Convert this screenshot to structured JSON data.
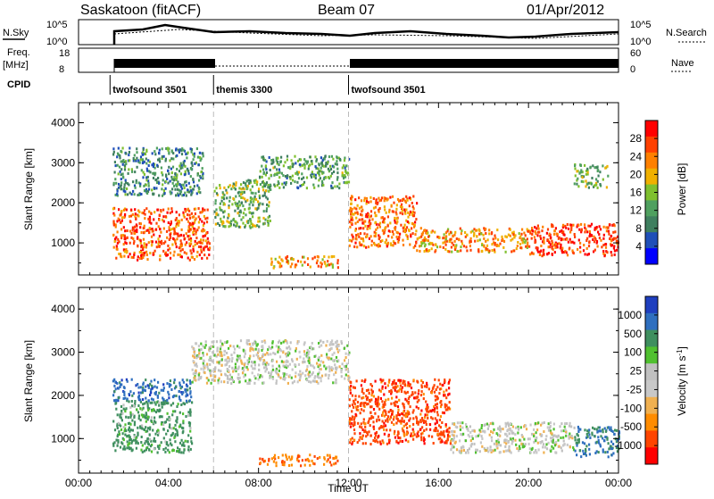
{
  "header": {
    "station": "Saskatoon (fitACF)",
    "beam": "Beam 07",
    "date": "01/Apr/2012"
  },
  "strip_labels": {
    "nsky": "N.Sky",
    "nsearch": "N.Search",
    "freq_top": "Freq.",
    "freq_unit": "[MHz]",
    "nave": "Nave",
    "cpid": "CPID"
  },
  "strip_ticks": {
    "nsky_left": [
      "10^5",
      "10^0"
    ],
    "nsky_right": [
      "10^5",
      "10^0"
    ],
    "freq_left": [
      "18",
      "8"
    ],
    "nave_right": [
      "60",
      "0"
    ]
  },
  "cpid_segments": [
    {
      "label": "twofsound 3501",
      "start_hour": 1.4
    },
    {
      "label": "themis 3300",
      "start_hour": 6.0
    },
    {
      "label": "twofsound 3501",
      "start_hour": 12.0
    }
  ],
  "colors": {
    "power": [
      "#0000ff",
      "#1f4fb8",
      "#3f7f5f",
      "#4fa05f",
      "#7fc02f",
      "#f0b000",
      "#ff8000",
      "#ff4000",
      "#ff0000"
    ],
    "velocity": [
      "#ff0000",
      "#ff4500",
      "#ff8c00",
      "#f0b050",
      "#c8c8c8",
      "#c0c0c0",
      "#50c030",
      "#3f8f5f",
      "#2f6fbf",
      "#1f3fbf"
    ]
  },
  "chart_data": [
    {
      "type": "heatmap",
      "title": "",
      "ylabel": "Slant Range [km]",
      "xlim": [
        0,
        24
      ],
      "ylim": [
        200,
        4500
      ],
      "yticks": [
        "1000",
        "2000",
        "3000",
        "4000"
      ],
      "colorbar_label": "Power [dB]",
      "colorbar_ticks": [
        "28",
        "24",
        "20",
        "16",
        "12",
        "8",
        "4"
      ],
      "echo_bands": [
        {
          "x": [
            1.5,
            5.8
          ],
          "y": [
            600,
            1900
          ],
          "level": 26
        },
        {
          "x": [
            1.5,
            5.5
          ],
          "y": [
            2200,
            3400
          ],
          "level": 10
        },
        {
          "x": [
            6.0,
            8.5
          ],
          "y": [
            1400,
            2600
          ],
          "level": 14
        },
        {
          "x": [
            8.0,
            12.0
          ],
          "y": [
            2400,
            3200
          ],
          "level": 12
        },
        {
          "x": [
            8.5,
            11.5
          ],
          "y": [
            400,
            700
          ],
          "level": 22
        },
        {
          "x": [
            12.0,
            15.0
          ],
          "y": [
            900,
            2200
          ],
          "level": 24
        },
        {
          "x": [
            15.0,
            20.0
          ],
          "y": [
            800,
            1400
          ],
          "level": 22
        },
        {
          "x": [
            20.0,
            24.0
          ],
          "y": [
            700,
            1500
          ],
          "level": 28
        },
        {
          "x": [
            22.0,
            23.5
          ],
          "y": [
            2400,
            3000
          ],
          "level": 14
        }
      ]
    },
    {
      "type": "heatmap",
      "title": "",
      "ylabel": "Slant Range [km]",
      "xlabel": "Time UT",
      "xlim": [
        0,
        24
      ],
      "ylim": [
        200,
        4500
      ],
      "xticks": [
        "00:00",
        "04:00",
        "08:00",
        "12:00",
        "16:00",
        "20:00",
        "00:00"
      ],
      "yticks": [
        "1000",
        "2000",
        "3000",
        "4000"
      ],
      "colorbar_label": "Velocity [m s",
      "colorbar_exp": "-1",
      "colorbar_ticks": [
        "1000",
        "500",
        "100",
        "25",
        "-25",
        "-100",
        "-500",
        "-1000"
      ],
      "echo_bands": [
        {
          "x": [
            1.5,
            5.0
          ],
          "y": [
            700,
            1900
          ],
          "level": 100
        },
        {
          "x": [
            1.5,
            5.0
          ],
          "y": [
            1900,
            2400
          ],
          "level": 500
        },
        {
          "x": [
            5.0,
            12.0
          ],
          "y": [
            2300,
            3300
          ],
          "level": 0
        },
        {
          "x": [
            8.0,
            11.5
          ],
          "y": [
            400,
            650
          ],
          "level": -300
        },
        {
          "x": [
            12.0,
            16.5
          ],
          "y": [
            900,
            2400
          ],
          "level": -500
        },
        {
          "x": [
            16.5,
            22.0
          ],
          "y": [
            700,
            1400
          ],
          "level": 0
        },
        {
          "x": [
            22.0,
            24.0
          ],
          "y": [
            600,
            1300
          ],
          "level": 300
        }
      ]
    }
  ]
}
